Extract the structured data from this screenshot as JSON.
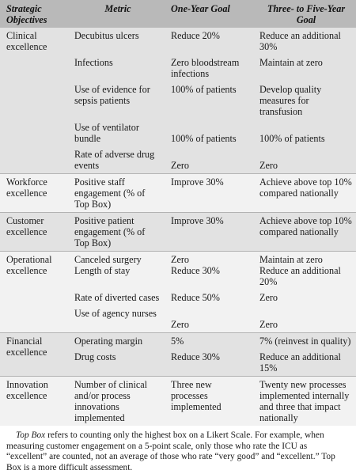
{
  "headers": {
    "objectives": "Strategic Objectives",
    "metric": "Metric",
    "one_year": "One-Year Goal",
    "three_five": "Three- to Five-Year Goal"
  },
  "groups": [
    {
      "objective": "Clinical excellence",
      "rows": [
        {
          "metric": "Decubitus ulcers",
          "one_year": "Reduce 20%",
          "three_five": "Reduce an additional 30%"
        },
        {
          "metric": "Infections",
          "one_year": "Zero bloodstream infections",
          "three_five": "Maintain at zero"
        },
        {
          "metric": "Use of evidence for sepsis patients",
          "one_year": "100% of patients",
          "three_five": "Develop quality measures for transfusion"
        },
        {
          "metric": "Use of ventilator bundle",
          "one_year": "100% of patients",
          "three_five": "100% of patients"
        },
        {
          "metric": "Rate of adverse drug events",
          "one_year": "Zero",
          "three_five": "Zero"
        }
      ]
    },
    {
      "objective": "Workforce excellence",
      "rows": [
        {
          "metric": "Positive staff engagement (% of Top Box)",
          "one_year": "Improve 30%",
          "three_five": "Achieve above top 10% compared nationally"
        }
      ]
    },
    {
      "objective": "Customer excellence",
      "rows": [
        {
          "metric": "Positive patient engagement (% of Top Box)",
          "one_year": "Improve 30%",
          "three_five": "Achieve above top 10% compared nationally"
        }
      ]
    },
    {
      "objective": "Operational excellence",
      "rows": [
        {
          "metric": "Canceled surgery",
          "one_year": "Zero",
          "three_five": "Maintain at zero"
        },
        {
          "metric": "Length of stay",
          "one_year": "Reduce 30%",
          "three_five": "Reduce an additional 20%"
        },
        {
          "metric": "Rate of diverted cases",
          "one_year": "Reduce 50%",
          "three_five": "Zero"
        },
        {
          "metric": "Use of agency nurses",
          "one_year": "Zero",
          "three_five": "Zero"
        }
      ]
    },
    {
      "objective": "Financial excellence",
      "rows": [
        {
          "metric": "Operating margin",
          "one_year": "5%",
          "three_five": "7% (reinvest in quality)"
        },
        {
          "metric": "Drug costs",
          "one_year": "Reduce 30%",
          "three_five": "Reduce an additional 15%"
        }
      ]
    },
    {
      "objective": "Innovation excellence",
      "rows": [
        {
          "metric": "Number of clinical and/or process innovations implemented",
          "one_year": "Three new processes implemented",
          "three_five": "Twenty new processes implemented internally and three that impact nationally"
        }
      ]
    }
  ],
  "footnote": {
    "term": "Top Box",
    "text": " refers to counting only the highest box on a Likert Scale. For example, when measuring customer engagement on a 5-point scale, only those who rate the ICU as “excellent” are counted, not an average of those who rate “very good” and “excellent.” Top Box is a more difficult assessment."
  }
}
